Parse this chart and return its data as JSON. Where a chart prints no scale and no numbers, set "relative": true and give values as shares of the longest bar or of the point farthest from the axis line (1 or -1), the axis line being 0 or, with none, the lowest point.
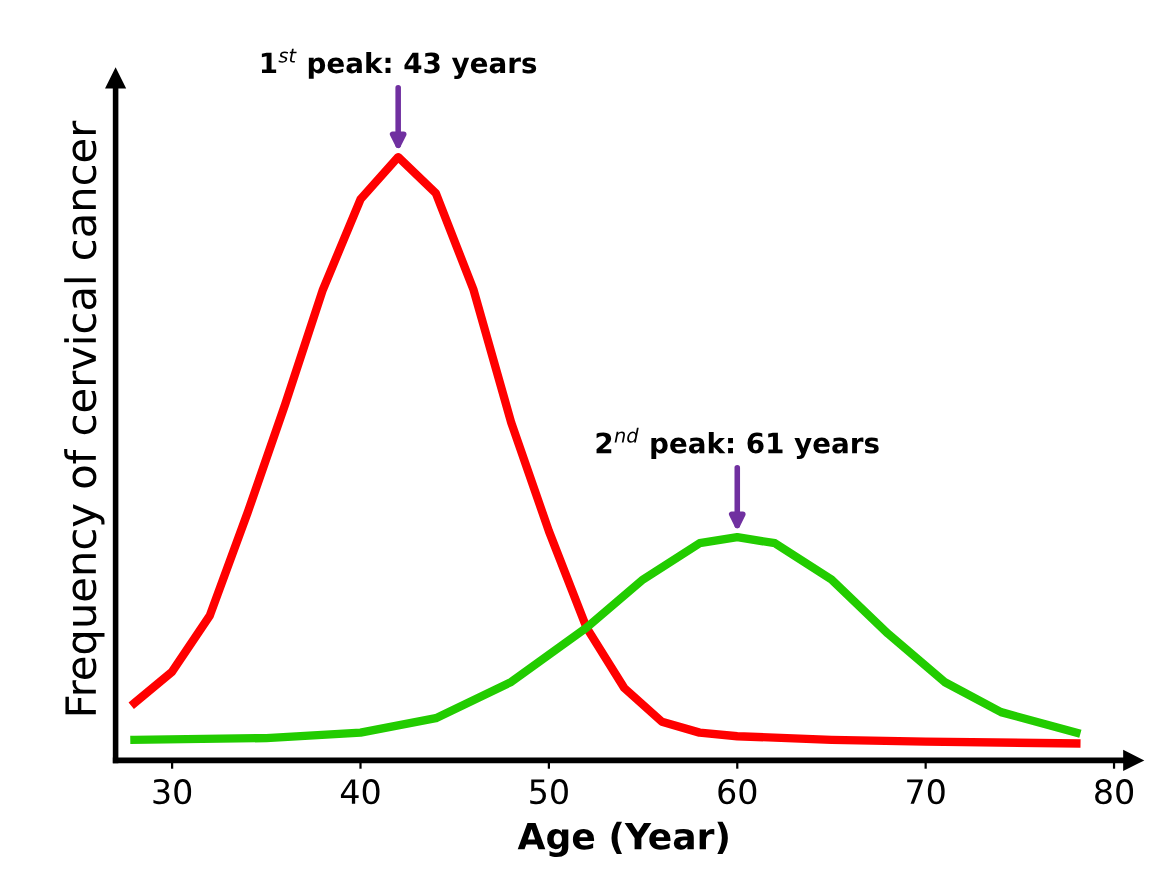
{
  "chart_data": {
    "type": "line",
    "relative": true,
    "xlabel": "Age (Year)",
    "ylabel": "Frequency of cervical cancer",
    "xlim": [
      27,
      81
    ],
    "xticks": [
      30,
      40,
      50,
      60,
      70,
      80
    ],
    "grid": false,
    "legend": false,
    "marker": "none",
    "line_style": "solid",
    "annotations": [
      {
        "text": "1$^{st}$ peak: 43 years",
        "x": 42,
        "y": 1.0
      },
      {
        "text": "2$^{nd}$ peak: 61 years",
        "x": 60,
        "y": 0.37
      }
    ],
    "series": [
      {
        "color": "#ff0000",
        "x": [
          28,
          30,
          32,
          34,
          36,
          38,
          40,
          42,
          44,
          46,
          48,
          50,
          52,
          54,
          56,
          58,
          60,
          65,
          70,
          78
        ],
        "values": [
          0.095,
          0.147,
          0.24,
          0.41,
          0.59,
          0.78,
          0.93,
          1.0,
          0.94,
          0.78,
          0.56,
          0.38,
          0.22,
          0.12,
          0.064,
          0.046,
          0.04,
          0.034,
          0.031,
          0.028
        ]
      },
      {
        "color": "#22cc00",
        "x": [
          28,
          35,
          40,
          44,
          48,
          52,
          55,
          58,
          60,
          62,
          65,
          68,
          71,
          74,
          78
        ],
        "values": [
          0.034,
          0.037,
          0.046,
          0.07,
          0.13,
          0.22,
          0.3,
          0.36,
          0.37,
          0.36,
          0.3,
          0.21,
          0.13,
          0.08,
          0.046
        ]
      }
    ]
  }
}
